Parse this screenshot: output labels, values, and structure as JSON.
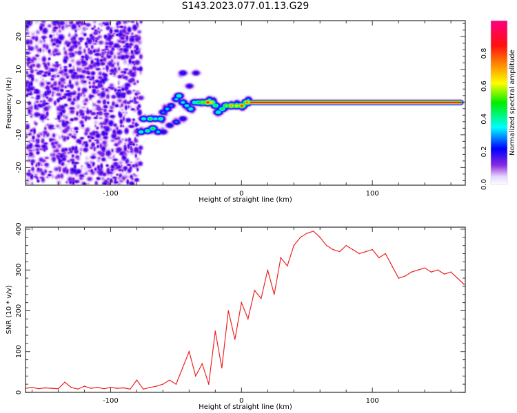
{
  "title": "S143.2023.077.01.13.G29",
  "chart_data": [
    {
      "type": "heatmap",
      "xlabel": "Height of straight line (km)",
      "ylabel": "Frequency (Hz)",
      "xlim": [
        -165,
        171
      ],
      "ylim": [
        -25.4,
        24.9
      ],
      "xticks": [
        -100,
        0,
        100
      ],
      "yticks": [
        -20,
        -10,
        0,
        10,
        20
      ],
      "colorbar": {
        "label": "Normalized spectral amplitude",
        "range": [
          0,
          1
        ],
        "ticks": [
          "0.0",
          "0.2",
          "0.4",
          "0.6",
          "0.8"
        ],
        "colors": [
          [
            0,
            "#ffffff"
          ],
          [
            0.05,
            "#e8d8ff"
          ],
          [
            0.12,
            "#8a2be2"
          ],
          [
            0.22,
            "#0000ff"
          ],
          [
            0.35,
            "#00ffff"
          ],
          [
            0.5,
            "#00ee00"
          ],
          [
            0.62,
            "#ffff00"
          ],
          [
            0.72,
            "#ff9900"
          ],
          [
            0.85,
            "#ff1010"
          ],
          [
            1,
            "#ff0080"
          ]
        ]
      },
      "noise_region": {
        "x": [
          -165,
          -77
        ],
        "freq": [
          -25,
          25
        ],
        "amplitude": 0.18
      },
      "ridge_points": [
        [
          -77,
          -9,
          0.42
        ],
        [
          -72,
          -8.7,
          0.45
        ],
        [
          -68,
          -8,
          0.5
        ],
        [
          -64,
          -9,
          0.35
        ],
        [
          -75,
          -5,
          0.42
        ],
        [
          -70,
          -5,
          0.5
        ],
        [
          -66,
          -5,
          0.4
        ],
        [
          -62,
          -5,
          0.45
        ],
        [
          -60,
          -3,
          0.3
        ],
        [
          -57,
          -2,
          0.35
        ],
        [
          -54,
          -1,
          0.3
        ],
        [
          -50,
          1,
          0.35
        ],
        [
          -48,
          2,
          0.45
        ],
        [
          -45,
          0,
          0.38
        ],
        [
          -42,
          -1,
          0.4
        ],
        [
          -39,
          -2,
          0.42
        ],
        [
          -36,
          0,
          0.45
        ],
        [
          -33,
          0,
          0.5
        ],
        [
          -30,
          0,
          0.6
        ],
        [
          -26,
          0,
          0.88
        ],
        [
          -23,
          0,
          0.7
        ],
        [
          -20,
          -1,
          0.5
        ],
        [
          -18,
          -3,
          0.45
        ],
        [
          -15,
          -2,
          0.5
        ],
        [
          -12,
          -1,
          0.6
        ],
        [
          -8,
          -1,
          0.75
        ],
        [
          -4,
          -1,
          0.7
        ],
        [
          0,
          -1,
          0.85
        ],
        [
          4,
          0,
          0.8
        ],
        [
          -50,
          -6,
          0.3
        ],
        [
          -55,
          -7,
          0.25
        ],
        [
          -45,
          9,
          0.25
        ],
        [
          -35,
          9,
          0.22
        ],
        [
          -40,
          5,
          0.22
        ],
        [
          -60,
          -9,
          0.25
        ],
        [
          -45,
          -5,
          0.25
        ]
      ],
      "line": {
        "x": [
          7,
          168
        ],
        "freq": 0,
        "amplitude": 0.93
      }
    },
    {
      "type": "line",
      "xlabel": "Height of straight line (km)",
      "ylabel": "SNR (10 * v/v)",
      "xlim": [
        -165,
        171
      ],
      "ylim": [
        0,
        405
      ],
      "xticks": [
        -100,
        0,
        100
      ],
      "yticks": [
        0,
        100,
        200,
        300,
        400
      ],
      "color": "#ee2222",
      "series": [
        {
          "name": "SNR",
          "x": [
            -165,
            -160,
            -155,
            -150,
            -145,
            -140,
            -135,
            -130,
            -125,
            -120,
            -115,
            -110,
            -105,
            -100,
            -95,
            -90,
            -85,
            -80,
            -75,
            -70,
            -65,
            -60,
            -55,
            -50,
            -45,
            -40,
            -35,
            -30,
            -25,
            -20,
            -15,
            -10,
            -5,
            0,
            5,
            10,
            15,
            20,
            25,
            30,
            35,
            40,
            45,
            50,
            55,
            60,
            65,
            70,
            75,
            80,
            85,
            90,
            95,
            100,
            105,
            110,
            115,
            120,
            125,
            130,
            135,
            140,
            145,
            150,
            155,
            160,
            165,
            170
          ],
          "values": [
            10,
            12,
            9,
            11,
            10,
            9,
            25,
            12,
            8,
            15,
            10,
            12,
            9,
            12,
            10,
            11,
            8,
            30,
            8,
            12,
            15,
            20,
            30,
            20,
            60,
            100,
            40,
            70,
            20,
            150,
            60,
            200,
            130,
            220,
            180,
            250,
            230,
            300,
            240,
            330,
            310,
            360,
            380,
            390,
            395,
            380,
            360,
            350,
            345,
            360,
            350,
            340,
            345,
            350,
            330,
            340,
            310,
            280,
            285,
            295,
            300,
            305,
            295,
            300,
            290,
            295,
            280,
            265
          ]
        }
      ]
    }
  ]
}
